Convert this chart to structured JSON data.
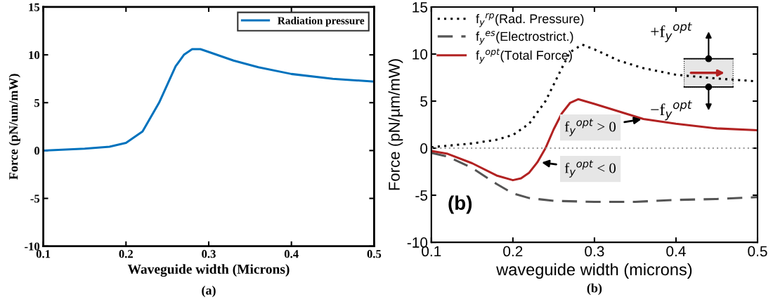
{
  "chart_data": [
    {
      "type": "line",
      "xlabel": "Waveguide width (Microns)",
      "ylabel": "Force (pN/um/mW)",
      "xlim": [
        0.1,
        0.5
      ],
      "ylim": [
        -10,
        15
      ],
      "xticks": [
        0.1,
        0.2,
        0.3,
        0.4,
        0.5
      ],
      "yticks": [
        -10,
        -5,
        0,
        5,
        10,
        15
      ],
      "grid": false,
      "legend": "top right",
      "line_style": "solid",
      "marker": "none",
      "series": [
        {
          "name": "Radiation pressure",
          "color": "#0072bd",
          "x": [
            0.1,
            0.15,
            0.18,
            0.2,
            0.22,
            0.24,
            0.26,
            0.27,
            0.28,
            0.29,
            0.3,
            0.33,
            0.36,
            0.4,
            0.45,
            0.5
          ],
          "values": [
            0,
            0.2,
            0.4,
            0.8,
            2.0,
            5.0,
            8.8,
            10.0,
            10.6,
            10.6,
            10.3,
            9.4,
            8.7,
            8.0,
            7.5,
            7.2
          ]
        }
      ],
      "annotations": [
        "(a)"
      ]
    },
    {
      "type": "line",
      "xlabel": "waveguide width (microns)",
      "ylabel": "Force (pN/µm/mW)",
      "xlim": [
        0.1,
        0.5
      ],
      "ylim": [
        -10,
        15
      ],
      "xticks": [
        0.1,
        0.2,
        0.3,
        0.4,
        0.5
      ],
      "yticks": [
        -10,
        -5,
        0,
        5,
        10,
        15
      ],
      "grid": false,
      "legend": "top left",
      "marker": "none",
      "series": [
        {
          "name": "f$_{y}$$^{rp}$(Rad. Pressure)",
          "color": "#000000",
          "line_style": "dotted",
          "x": [
            0.1,
            0.15,
            0.18,
            0.2,
            0.22,
            0.24,
            0.26,
            0.27,
            0.285,
            0.3,
            0.33,
            0.36,
            0.4,
            0.45,
            0.5
          ],
          "values": [
            0.1,
            0.5,
            0.9,
            1.4,
            2.6,
            5.0,
            8.5,
            10.2,
            11.0,
            10.5,
            9.3,
            8.5,
            7.8,
            7.4,
            7.1
          ]
        },
        {
          "name": "f$_{y}$$^{es}$(Electrostrict.)",
          "color": "#555555",
          "line_style": "dashed",
          "x": [
            0.1,
            0.12,
            0.15,
            0.18,
            0.2,
            0.22,
            0.25,
            0.3,
            0.35,
            0.4,
            0.45,
            0.5
          ],
          "values": [
            -0.5,
            -0.9,
            -2.1,
            -3.8,
            -4.8,
            -5.3,
            -5.6,
            -5.7,
            -5.7,
            -5.5,
            -5.4,
            -5.2
          ]
        },
        {
          "name": "f$_{y}$$^{opt}$(Total Force)",
          "color": "#b22222",
          "line_style": "solid",
          "x": [
            0.1,
            0.12,
            0.15,
            0.18,
            0.2,
            0.21,
            0.22,
            0.23,
            0.24,
            0.25,
            0.26,
            0.27,
            0.28,
            0.3,
            0.33,
            0.36,
            0.4,
            0.45,
            0.5
          ],
          "values": [
            -0.3,
            -0.6,
            -1.6,
            -2.9,
            -3.4,
            -3.2,
            -2.6,
            -1.5,
            0,
            2.0,
            3.7,
            4.8,
            5.2,
            4.7,
            3.9,
            3.1,
            2.6,
            2.1,
            1.9
          ]
        }
      ],
      "ref_lines": [
        {
          "axis": "y",
          "value": 0,
          "color": "#999999",
          "line_style": "dotted"
        }
      ],
      "annotations": [
        {
          "text": "f$_{y}$$^{opt}$ > 0",
          "x": 0.36,
          "y": 3.1
        },
        {
          "text": "f$_{y}$$^{opt}$ < 0",
          "x": 0.233,
          "y": -1.5
        },
        "+f$_{y}$$^{opt}$",
        "−f$_{y}$$^{opt}$",
        "(b)",
        "(b)"
      ]
    }
  ]
}
